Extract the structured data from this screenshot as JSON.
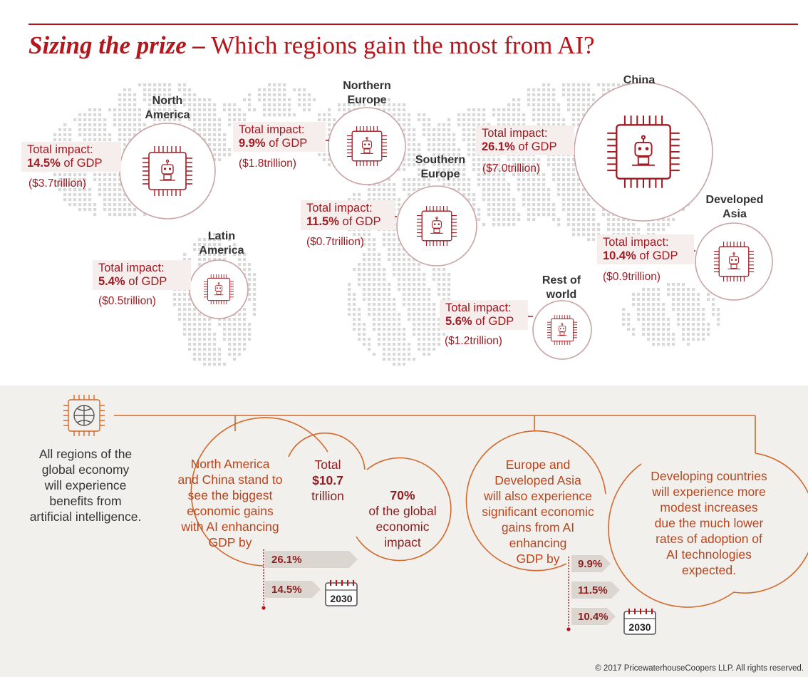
{
  "title": {
    "bold": "Sizing the prize –",
    "rest": " Which regions gain the most from AI?"
  },
  "regions": [
    {
      "name_lines": [
        "North",
        "America"
      ],
      "impact_label": "Total impact:",
      "pct": "14.5%",
      "of_gdp": " of GDP",
      "trillion": "($3.7trillion)"
    },
    {
      "name_lines": [
        "Northern",
        "Europe"
      ],
      "impact_label": "Total impact:",
      "pct": "9.9%",
      "of_gdp": " of GDP",
      "trillion": "($1.8trillion)"
    },
    {
      "name_lines": [
        "China"
      ],
      "impact_label": "Total impact:",
      "pct": "26.1%",
      "of_gdp": " of GDP",
      "trillion": "($7.0trillion)"
    },
    {
      "name_lines": [
        "Southern",
        "Europe"
      ],
      "impact_label": "Total impact:",
      "pct": "11.5%",
      "of_gdp": " of GDP",
      "trillion": "($0.7trillion)"
    },
    {
      "name_lines": [
        "Developed",
        "Asia"
      ],
      "impact_label": "Total impact:",
      "pct": "10.4%",
      "of_gdp": " of GDP",
      "trillion": "($0.9trillion)"
    },
    {
      "name_lines": [
        "Latin",
        "America"
      ],
      "impact_label": "Total impact:",
      "pct": "5.4%",
      "of_gdp": " of GDP",
      "trillion": "($0.5trillion)"
    },
    {
      "name_lines": [
        "Rest of",
        "world"
      ],
      "impact_label": "Total impact:",
      "pct": "5.6%",
      "of_gdp": " of GDP",
      "trillion": "($1.2trillion)"
    }
  ],
  "bottom": {
    "intro_lines": [
      "All regions of the",
      "global economy",
      "will experience",
      "benefits from",
      "artificial intelligence."
    ],
    "na_china_lines": [
      "North America",
      "and China stand to",
      "see the biggest",
      "economic gains",
      "with AI enhancing",
      "GDP by"
    ],
    "na_china_values": [
      "26.1%",
      "14.5%"
    ],
    "total_lines": [
      "Total",
      "$10.7",
      "trillion"
    ],
    "share_lines": [
      "70%",
      "of the global",
      "economic",
      "impact"
    ],
    "europe_lines": [
      "Europe and",
      "Developed Asia",
      "will also experience",
      "significant economic",
      "gains from AI",
      "enhancing",
      "GDP by"
    ],
    "europe_values": [
      "9.9%",
      "11.5%",
      "10.4%"
    ],
    "developing_lines": [
      "Developing countries",
      "will experience more",
      "modest increases",
      "due the much lower",
      "rates of adoption of",
      "AI technologies",
      "expected."
    ],
    "year": "2030"
  },
  "copyright": "© 2017 PricewaterhouseCoopers LLP. All rights reserved.",
  "colors": {
    "brand_red": "#b5151b",
    "dark_red": "#8e1f20",
    "orange": "#d2692a",
    "panel_bg": "#f2f0ed"
  }
}
